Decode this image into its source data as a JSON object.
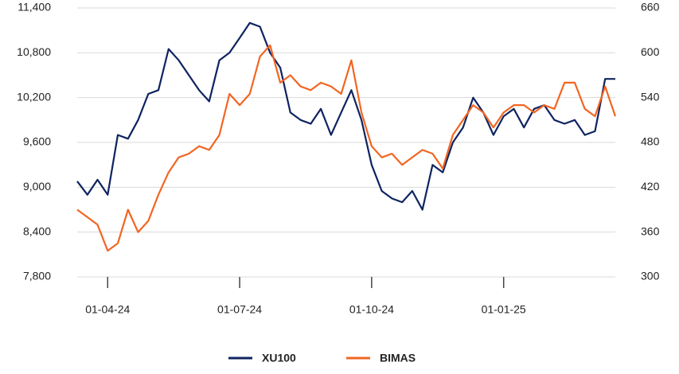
{
  "chart_data": {
    "type": "line",
    "categories": [
      null,
      null,
      null,
      "01-04-24",
      null,
      null,
      null,
      null,
      null,
      null,
      null,
      null,
      null,
      null,
      null,
      null,
      "01-07-24",
      null,
      null,
      null,
      null,
      null,
      null,
      null,
      null,
      null,
      null,
      null,
      null,
      "01-10-24",
      null,
      null,
      null,
      null,
      null,
      null,
      null,
      null,
      null,
      null,
      null,
      null,
      "01-01-25",
      null,
      null,
      null,
      null,
      null,
      null,
      null,
      null,
      null,
      null,
      null
    ],
    "series": [
      {
        "name": "XU100",
        "color": "#0f2360",
        "axis": "y",
        "values": [
          9080,
          8900,
          9100,
          8900,
          9700,
          9650,
          9900,
          10250,
          10300,
          10850,
          10700,
          10500,
          10300,
          10150,
          10700,
          10800,
          11000,
          11200,
          11150,
          10800,
          10600,
          10000,
          9900,
          9850,
          10050,
          9700,
          10000,
          10300,
          9900,
          9300,
          8950,
          8850,
          8800,
          8950,
          8700,
          9300,
          9200,
          9600,
          9800,
          10200,
          10000,
          9700,
          9950,
          10050,
          9800,
          10050,
          10100,
          9900,
          9850,
          9900,
          9700,
          9750,
          10450,
          10450
        ]
      },
      {
        "name": "BIMAS",
        "color": "#f26522",
        "axis": "y2",
        "values": [
          390,
          380,
          370,
          335,
          345,
          390,
          360,
          375,
          410,
          440,
          460,
          465,
          475,
          470,
          490,
          545,
          530,
          545,
          595,
          610,
          560,
          570,
          555,
          550,
          560,
          555,
          545,
          590,
          520,
          475,
          460,
          465,
          450,
          460,
          470,
          465,
          445,
          490,
          510,
          530,
          520,
          500,
          520,
          530,
          530,
          520,
          530,
          525,
          560,
          560,
          525,
          515,
          555,
          515
        ]
      }
    ],
    "ylim": [
      7800,
      11400
    ],
    "yticks": [
      {
        "value": 7800,
        "label": "7,800"
      },
      {
        "value": 8400,
        "label": "8,400"
      },
      {
        "value": 9000,
        "label": "9,000"
      },
      {
        "value": 9600,
        "label": "9,600"
      },
      {
        "value": 10200,
        "label": "10,200"
      },
      {
        "value": 10800,
        "label": "10,800"
      },
      {
        "value": 11400,
        "label": "11,400"
      }
    ],
    "y2lim": [
      300,
      660
    ],
    "y2ticks": [
      300,
      360,
      420,
      480,
      540,
      600,
      660
    ],
    "grid": true,
    "legend": "bottom"
  }
}
